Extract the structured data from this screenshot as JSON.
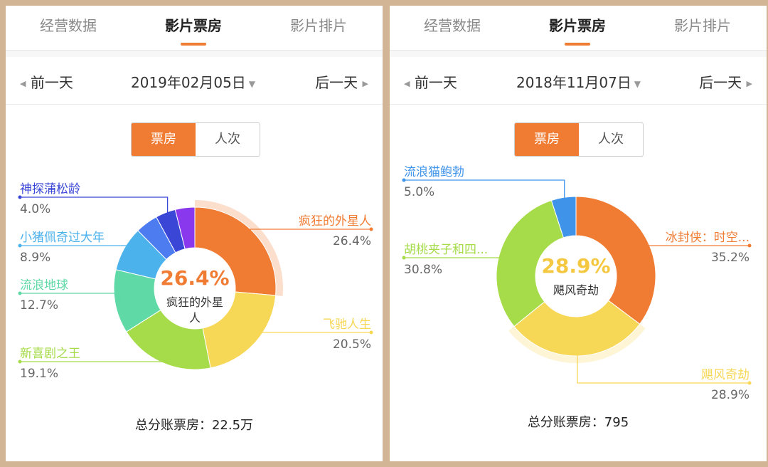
{
  "left": {
    "tabs": [
      "经营数据",
      "影片票房",
      "影片排片"
    ],
    "active_tab": 1,
    "nav": {
      "prev": "前一天",
      "date": "2019年02月05日",
      "next": "后一天"
    },
    "toggle": {
      "options": [
        "票房",
        "人次"
      ],
      "active": 0
    },
    "center": {
      "value": "26.4%",
      "label_line1": "疯狂的外星",
      "label_line2": "人",
      "color": "#f07c34"
    },
    "total": "总分账票房：22.5万",
    "chart_data": {
      "type": "pie",
      "donut": true,
      "highlighted": "疯狂的外星人",
      "slices": [
        {
          "label": "疯狂的外星人",
          "value": 26.4,
          "display": "26.4%",
          "color": "#f07c34",
          "side": "right"
        },
        {
          "label": "飞驰人生",
          "value": 20.5,
          "display": "20.5%",
          "color": "#f7d756",
          "side": "right"
        },
        {
          "label": "新喜剧之王",
          "value": 19.1,
          "display": "19.1%",
          "color": "#a6db4a",
          "side": "left"
        },
        {
          "label": "流浪地球",
          "value": 12.7,
          "display": "12.7%",
          "color": "#5fd9a6",
          "side": "left"
        },
        {
          "label": "小猪佩奇过大年",
          "value": 8.9,
          "display": "8.9%",
          "color": "#4cb2ec",
          "side": "left"
        },
        {
          "label": "",
          "value": 4.5,
          "display": "",
          "color": "#4d7cf0",
          "side": "none"
        },
        {
          "label": "神探蒲松龄",
          "value": 4.0,
          "display": "4.0%",
          "color": "#3a46d6",
          "side": "left"
        },
        {
          "label": "",
          "value": 3.9,
          "display": "",
          "color": "#8a38ee",
          "side": "none"
        }
      ]
    }
  },
  "right": {
    "tabs": [
      "经营数据",
      "影片票房",
      "影片排片"
    ],
    "active_tab": 1,
    "nav": {
      "prev": "前一天",
      "date": "2018年11月07日",
      "next": "后一天"
    },
    "toggle": {
      "options": [
        "票房",
        "人次"
      ],
      "active": 0
    },
    "center": {
      "value": "28.9%",
      "label_line1": "飓风奇劫",
      "label_line2": "",
      "color": "#f5c842"
    },
    "total": "总分账票房：795",
    "chart_data": {
      "type": "pie",
      "donut": true,
      "highlighted": "飓风奇劫",
      "slices": [
        {
          "label": "冰封侠：时空...",
          "value": 35.2,
          "display": "35.2%",
          "color": "#f07c34",
          "side": "right"
        },
        {
          "label": "飓风奇劫",
          "value": 28.9,
          "display": "28.9%",
          "color": "#f7d756",
          "side": "right"
        },
        {
          "label": "胡桃夹子和四...",
          "value": 30.8,
          "display": "30.8%",
          "color": "#a6db4a",
          "side": "left"
        },
        {
          "label": "流浪猫鲍勃",
          "value": 5.0,
          "display": "5.0%",
          "color": "#3f94ea",
          "side": "left"
        }
      ]
    }
  }
}
